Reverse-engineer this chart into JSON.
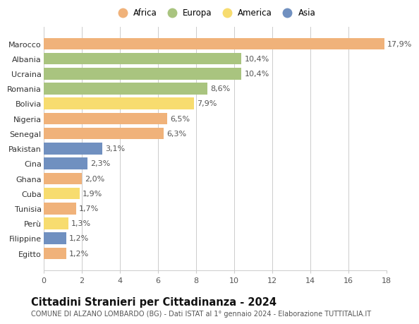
{
  "countries": [
    "Marocco",
    "Albania",
    "Ucraina",
    "Romania",
    "Bolivia",
    "Nigeria",
    "Senegal",
    "Pakistan",
    "Cina",
    "Ghana",
    "Cuba",
    "Tunisia",
    "Perù",
    "Filippine",
    "Egitto"
  ],
  "values": [
    17.9,
    10.4,
    10.4,
    8.6,
    7.9,
    6.5,
    6.3,
    3.1,
    2.3,
    2.0,
    1.9,
    1.7,
    1.3,
    1.2,
    1.2
  ],
  "labels": [
    "17,9%",
    "10,4%",
    "10,4%",
    "8,6%",
    "7,9%",
    "6,5%",
    "6,3%",
    "3,1%",
    "2,3%",
    "2,0%",
    "1,9%",
    "1,7%",
    "1,3%",
    "1,2%",
    "1,2%"
  ],
  "continents": [
    "Africa",
    "Europa",
    "Europa",
    "Europa",
    "America",
    "Africa",
    "Africa",
    "Asia",
    "Asia",
    "Africa",
    "America",
    "Africa",
    "America",
    "Asia",
    "Africa"
  ],
  "colors": {
    "Africa": "#F0B27A",
    "Europa": "#A9C47F",
    "America": "#F7DC6F",
    "Asia": "#7090C0"
  },
  "legend_order": [
    "Africa",
    "Europa",
    "America",
    "Asia"
  ],
  "title": "Cittadini Stranieri per Cittadinanza - 2024",
  "subtitle": "COMUNE DI ALZANO LOMBARDO (BG) - Dati ISTAT al 1° gennaio 2024 - Elaborazione TUTTITALIA.IT",
  "xlim": [
    0,
    18
  ],
  "xticks": [
    0,
    2,
    4,
    6,
    8,
    10,
    12,
    14,
    16,
    18
  ],
  "bg_color": "#FFFFFF",
  "grid_color": "#CCCCCC",
  "bar_height": 0.78,
  "label_fontsize": 8.0,
  "tick_fontsize": 8.0,
  "title_fontsize": 10.5,
  "subtitle_fontsize": 7.0
}
